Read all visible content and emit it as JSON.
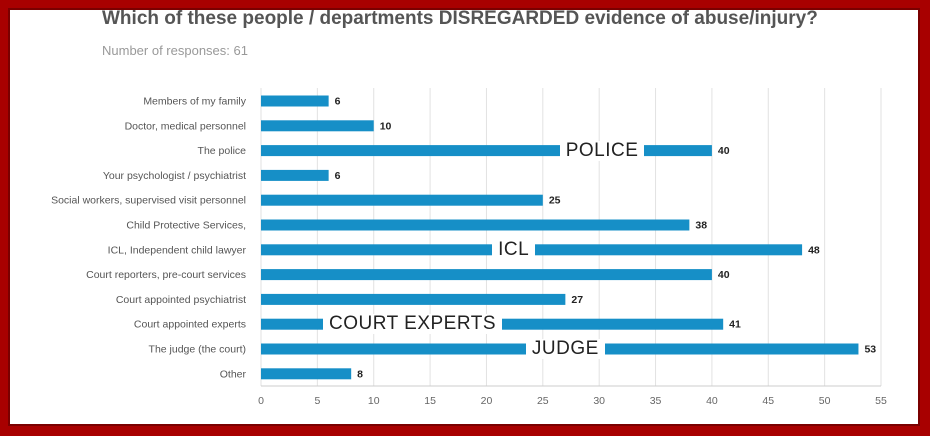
{
  "title": "Which of these people / departments DISREGARDED  evidence of abuse/injury?",
  "subtitle": "Number of responses: 61",
  "colors": {
    "bar": "#168fc7",
    "grid": "#e2e2e2",
    "frame": "#a80000"
  },
  "chart_data": {
    "type": "bar",
    "orientation": "horizontal",
    "categories": [
      "Members of my family",
      "Doctor, medical personnel",
      "The police",
      "Your psychologist / psychiatrist",
      "Social workers, supervised visit personnel",
      "Child Protective Services,",
      "ICL, Independent child lawyer",
      "Court reporters, pre-court services",
      "Court appointed psychiatrist",
      "Court appointed experts",
      "The judge (the court)",
      "Other"
    ],
    "values": [
      6,
      10,
      40,
      6,
      25,
      38,
      48,
      40,
      27,
      41,
      53,
      8
    ],
    "xlim": [
      0,
      55
    ],
    "xticks": [
      0,
      5,
      10,
      15,
      20,
      25,
      30,
      35,
      40,
      45,
      50,
      55
    ],
    "grid": "vertical",
    "annotations": [
      {
        "text": "POLICE",
        "category_index": 2,
        "x": 26.5
      },
      {
        "text": "ICL",
        "category_index": 6,
        "x": 20.5
      },
      {
        "text": "COURT EXPERTS",
        "category_index": 9,
        "x": 5.5
      },
      {
        "text": "JUDGE",
        "category_index": 10,
        "x": 23.5
      }
    ]
  }
}
